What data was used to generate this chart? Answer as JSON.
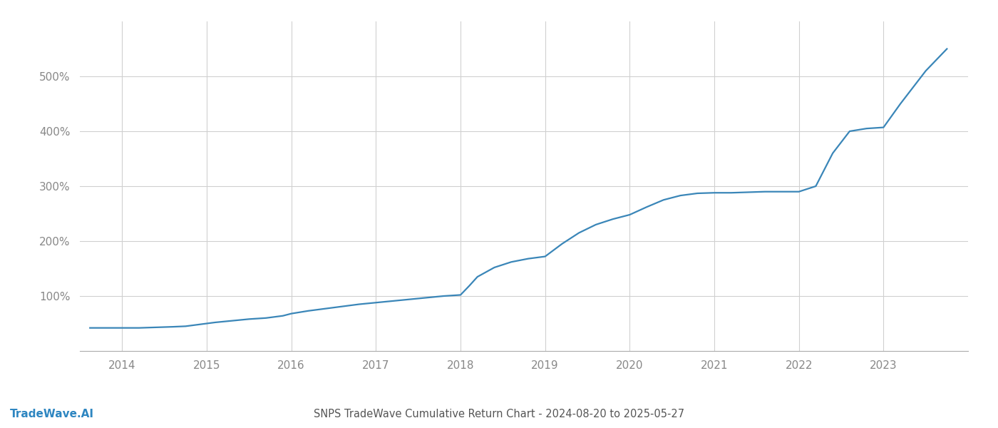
{
  "title": "SNPS TradeWave Cumulative Return Chart - 2024-08-20 to 2025-05-27",
  "watermark": "TradeWave.AI",
  "line_color": "#3a86b8",
  "background_color": "#ffffff",
  "grid_color": "#d0d0d0",
  "x_years": [
    2014,
    2015,
    2016,
    2017,
    2018,
    2019,
    2020,
    2021,
    2022,
    2023
  ],
  "x_data": [
    2013.62,
    2013.75,
    2013.9,
    2014.0,
    2014.1,
    2014.2,
    2014.4,
    2014.6,
    2014.75,
    2014.9,
    2015.0,
    2015.1,
    2015.3,
    2015.5,
    2015.7,
    2015.9,
    2016.0,
    2016.2,
    2016.4,
    2016.6,
    2016.8,
    2017.0,
    2017.2,
    2017.4,
    2017.6,
    2017.8,
    2018.0,
    2018.1,
    2018.2,
    2018.4,
    2018.6,
    2018.8,
    2019.0,
    2019.2,
    2019.4,
    2019.6,
    2019.8,
    2020.0,
    2020.2,
    2020.4,
    2020.6,
    2020.8,
    2021.0,
    2021.2,
    2021.4,
    2021.6,
    2021.8,
    2022.0,
    2022.1,
    2022.2,
    2022.4,
    2022.6,
    2022.8,
    2023.0,
    2023.2,
    2023.5,
    2023.75
  ],
  "y_data": [
    42,
    42,
    42,
    42,
    42,
    42,
    43,
    44,
    45,
    48,
    50,
    52,
    55,
    58,
    60,
    64,
    68,
    73,
    77,
    81,
    85,
    88,
    91,
    94,
    97,
    100,
    102,
    118,
    135,
    152,
    162,
    168,
    172,
    195,
    215,
    230,
    240,
    248,
    262,
    275,
    283,
    287,
    288,
    288,
    289,
    290,
    290,
    290,
    295,
    300,
    360,
    400,
    405,
    407,
    450,
    510,
    550
  ],
  "yticks": [
    100,
    200,
    300,
    400,
    500
  ],
  "ylim": [
    0,
    600
  ],
  "xlim": [
    2013.5,
    2024.0
  ],
  "line_width": 1.6,
  "tick_color": "#888888",
  "title_fontsize": 10.5,
  "watermark_fontsize": 11,
  "tick_fontsize": 11
}
